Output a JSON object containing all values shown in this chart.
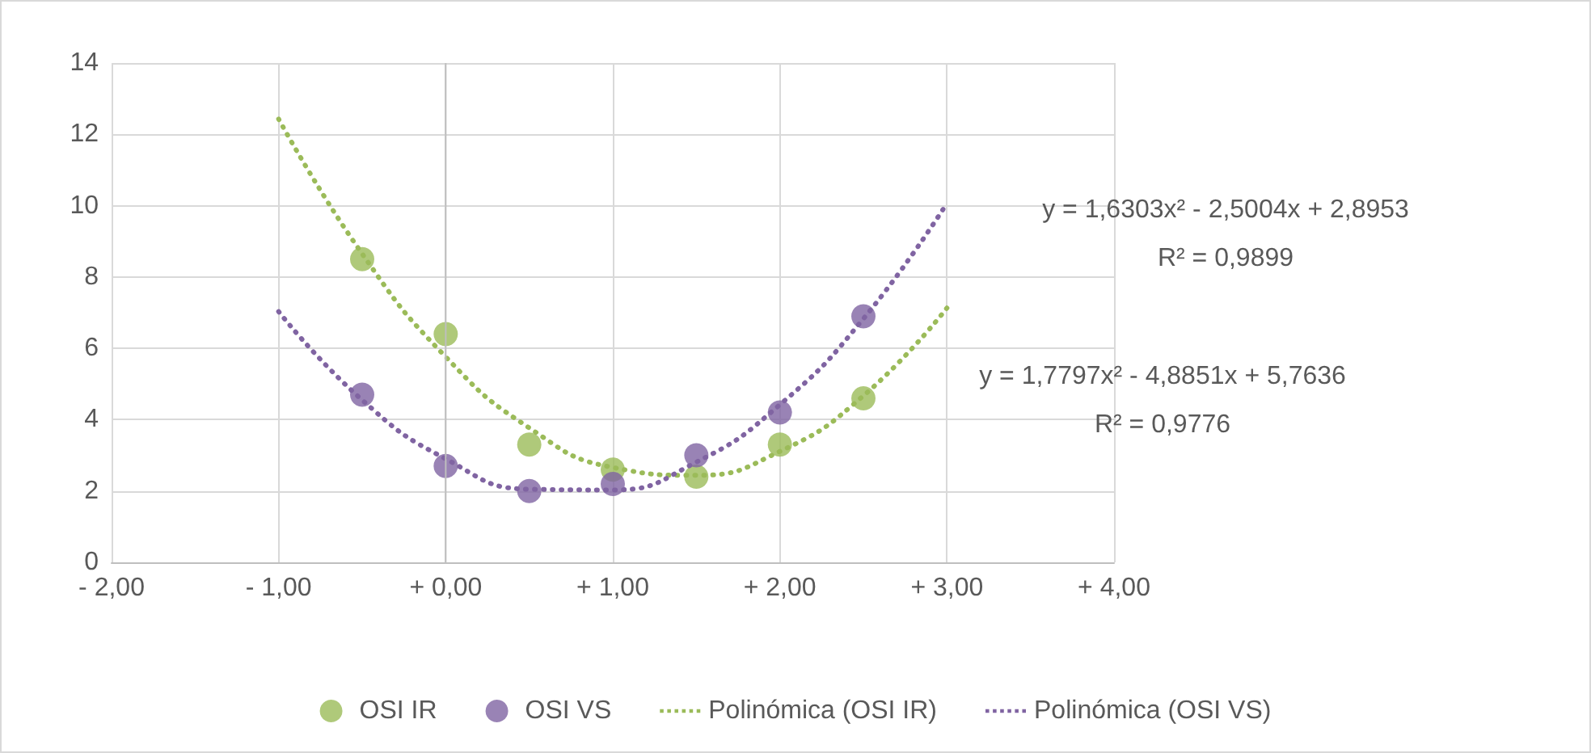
{
  "chart_data": {
    "type": "scatter",
    "xlim": [
      -2,
      4
    ],
    "xticks": [
      {
        "value": -2,
        "label": "- 2,00"
      },
      {
        "value": -1,
        "label": "- 1,00"
      },
      {
        "value": 0,
        "label": "+ 0,00"
      },
      {
        "value": 1,
        "label": "+ 1,00"
      },
      {
        "value": 2,
        "label": "+ 2,00"
      },
      {
        "value": 3,
        "label": "+ 3,00"
      },
      {
        "value": 4,
        "label": "+ 4,00"
      }
    ],
    "ylim": [
      0,
      14
    ],
    "yticks": [
      0,
      2,
      4,
      6,
      8,
      10,
      12,
      14
    ],
    "grid": true,
    "legend": "bottom",
    "marker": "circle",
    "series": [
      {
        "name": "OSI IR",
        "color": "#9bbb59",
        "x": [
          -0.5,
          0,
          0.5,
          1,
          1.5,
          2,
          2.5
        ],
        "values": [
          8.5,
          6.4,
          3.3,
          2.6,
          2.4,
          3.3,
          4.6
        ]
      },
      {
        "name": "OSI VS",
        "color": "#8064a2",
        "x": [
          -0.5,
          0,
          0.5,
          1,
          1.5,
          2,
          2.5
        ],
        "values": [
          4.7,
          2.7,
          2.0,
          2.2,
          3.0,
          4.2,
          6.9
        ]
      },
      {
        "name": "Polinómica (OSI IR)",
        "type": "line",
        "line_style": "dotted",
        "marker": "none",
        "color": "#9bbb59",
        "x": [
          -1,
          -0.5,
          0,
          0.5,
          1,
          1.5,
          2,
          2.5,
          3
        ],
        "values": [
          12.43,
          8.65,
          5.76,
          3.77,
          2.66,
          2.44,
          3.11,
          4.67,
          7.13
        ]
      },
      {
        "name": "Polinómica (OSI VS)",
        "type": "line",
        "line_style": "dotted",
        "marker": "none",
        "color": "#8064a2",
        "x": [
          -1,
          -0.5,
          0,
          0.5,
          1,
          1.5,
          2,
          2.5,
          3
        ],
        "values": [
          7.03,
          4.55,
          2.9,
          2.05,
          2.03,
          2.81,
          4.42,
          6.83,
          10.07
        ]
      }
    ],
    "annotations": [
      "y = 1,6303x² - 2,5004x + 2,8953\nR² = 0,9899",
      "y = 1,7797x² - 4,8851x + 5,7636\nR² = 0,9776"
    ]
  }
}
